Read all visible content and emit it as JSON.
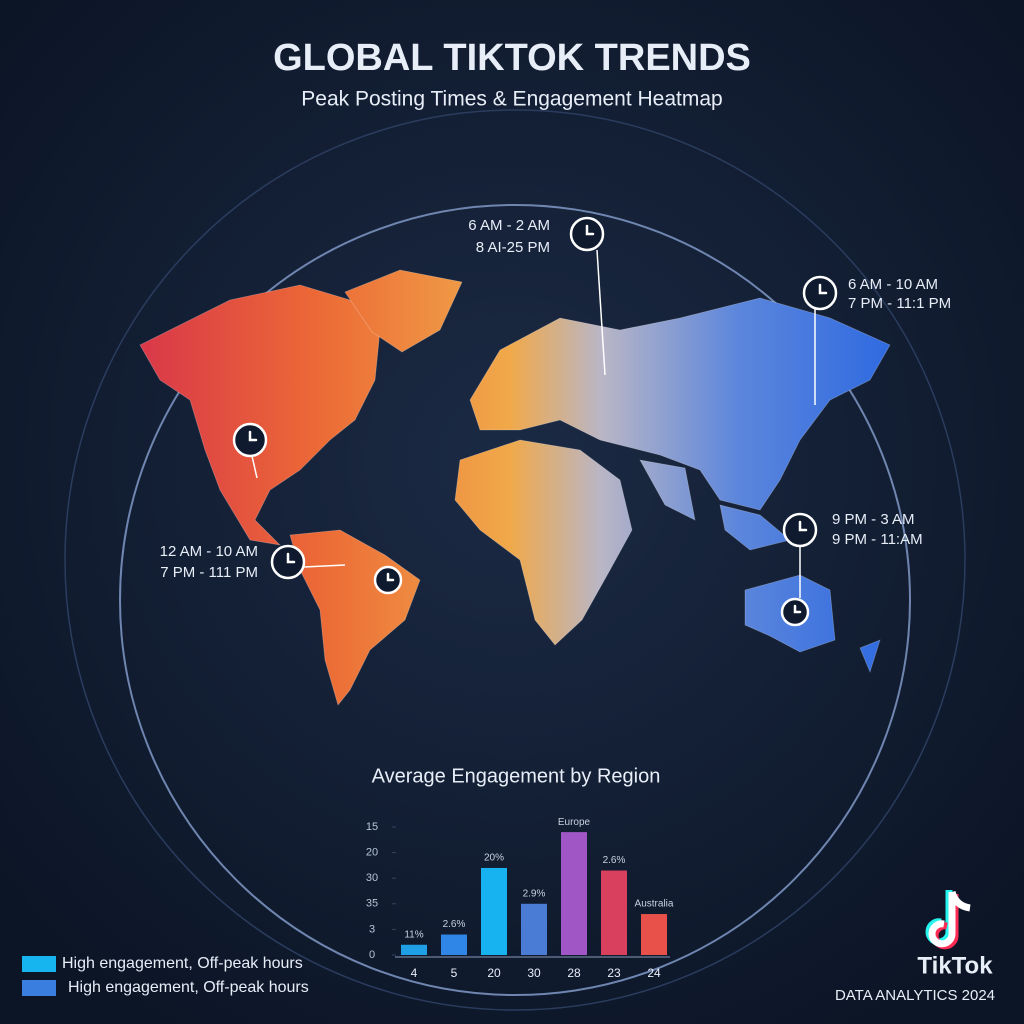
{
  "header": {
    "title": "GLOBAL TIKTOK TRENDS",
    "subtitle": "Peak Posting Times & Engagement Heatmap"
  },
  "map_callouts": [
    {
      "lines": [
        "6 AM - 2 AM",
        "8 AI-25 PM"
      ]
    },
    {
      "lines": [
        "6 AM - 10 AM",
        "7 PM - 11:1 PM"
      ]
    },
    {
      "lines": [
        "12 AM - 10 AM",
        "7 PM - 111 PM"
      ]
    },
    {
      "lines": [
        "9 PM - 3 AM",
        "9 PM - 11:AM"
      ]
    }
  ],
  "chart_data": {
    "type": "bar",
    "title": "Average Engagement by Region",
    "categories": [
      "4",
      "5",
      "20",
      "30",
      "28",
      "23",
      "24"
    ],
    "values": [
      0.4,
      0.8,
      3.4,
      2.0,
      4.8,
      3.3,
      1.6
    ],
    "colors": [
      "#1e9fe6",
      "#2f86e6",
      "#17b3f0",
      "#4a7cd6",
      "#a056c4",
      "#d8405e",
      "#e8514a"
    ],
    "annotations": [
      "11%",
      "2.6%",
      "20%",
      "2.9%",
      "Europe",
      "2.6%",
      "Australia"
    ],
    "ylim": [
      0,
      5
    ],
    "yticks": [
      {
        "value": 0,
        "label": "0"
      },
      {
        "value": 1,
        "label": "3"
      },
      {
        "value": 2,
        "label": "35"
      },
      {
        "value": 3,
        "label": "30"
      },
      {
        "value": 4,
        "label": "20"
      },
      {
        "value": 5,
        "label": "15"
      }
    ],
    "legend": [
      {
        "label": "High engagement, Off-peak hours",
        "color": "#17b5f0"
      },
      {
        "label": "High engagement, Off-peak hours",
        "color": "#3a7ee0"
      }
    ]
  },
  "footer": {
    "brand": "TikTok",
    "caption": "DATA ANALYTICS 2024"
  }
}
